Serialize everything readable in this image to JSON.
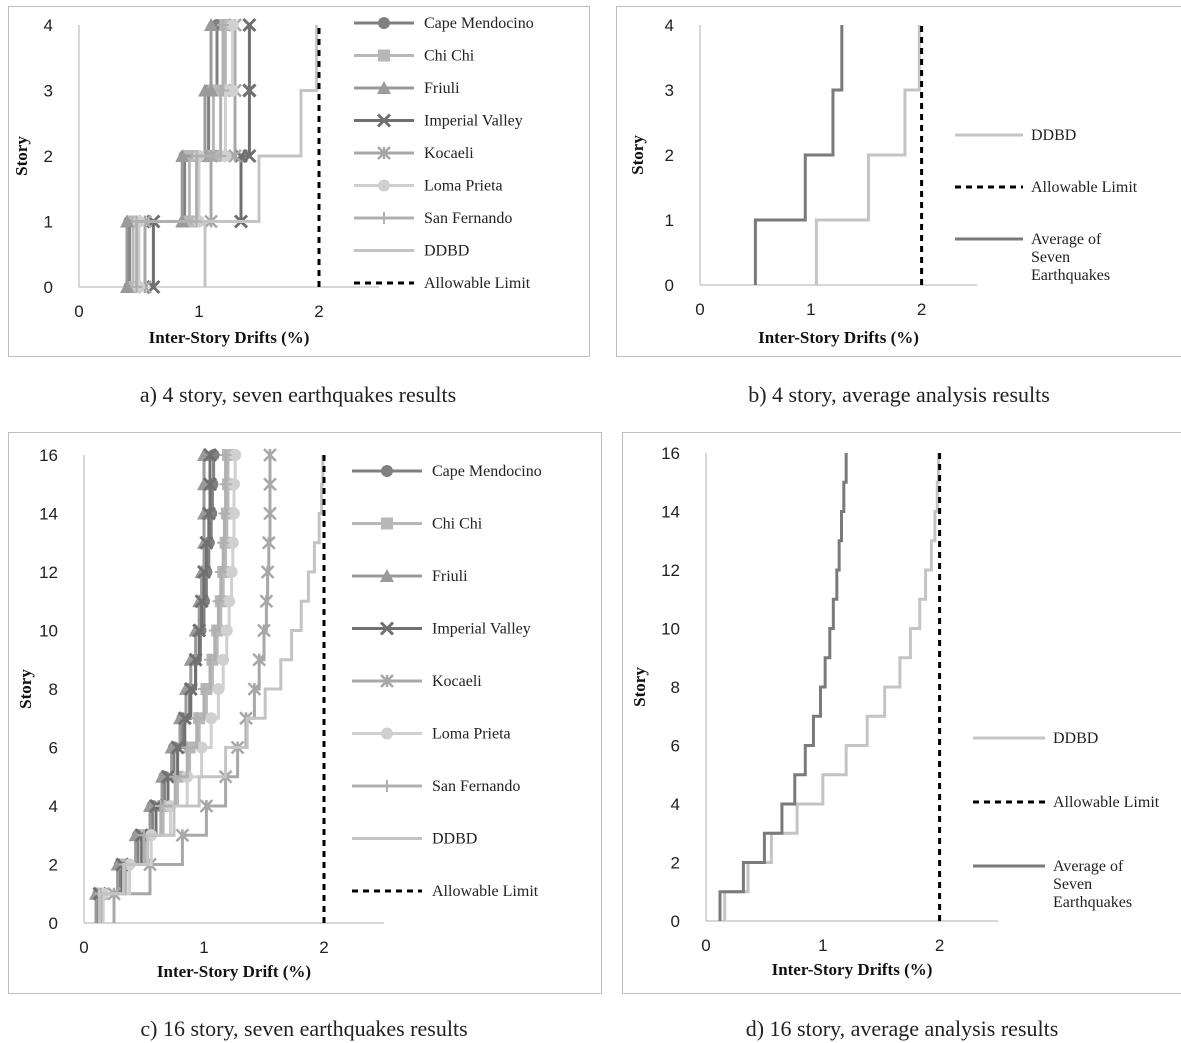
{
  "captions": {
    "a": "a) 4 story, seven earthquakes results",
    "b": "b) 4 story, average analysis results",
    "c": "c) 16 story, seven earthquakes results",
    "d": "d) 16 story, average analysis results"
  },
  "chart_data": [
    {
      "id": "a",
      "type": "line",
      "xlabel": "Inter-Story Drifts (%)",
      "ylabel": "Story",
      "xlim": [
        0,
        2.5
      ],
      "ylim": [
        0,
        4
      ],
      "xticks": [
        0,
        1,
        2
      ],
      "yticks": [
        0,
        1,
        2,
        3,
        4
      ],
      "grid": false,
      "legend_position": "right",
      "stories": [
        1,
        2,
        3,
        4
      ],
      "series": [
        {
          "name": "Cape Mendocino",
          "color": "#808080",
          "marker": "circle",
          "values": [
            0.42,
            0.88,
            1.08,
            1.15
          ]
        },
        {
          "name": "Chi Chi",
          "color": "#b8b8b8",
          "marker": "square",
          "values": [
            0.45,
            0.92,
            1.12,
            1.22
          ]
        },
        {
          "name": "Friuli",
          "color": "#9a9a9a",
          "marker": "triangle",
          "values": [
            0.4,
            0.86,
            1.05,
            1.1
          ]
        },
        {
          "name": "Imperial Valley",
          "color": "#707070",
          "marker": "x",
          "values": [
            0.62,
            1.35,
            1.42,
            1.42
          ]
        },
        {
          "name": "Kocaeli",
          "color": "#a8a8a8",
          "marker": "star",
          "values": [
            0.55,
            1.1,
            1.3,
            1.3
          ]
        },
        {
          "name": "Loma Prieta",
          "color": "#d0d0d0",
          "marker": "circle",
          "values": [
            0.5,
            1.0,
            1.22,
            1.28
          ]
        },
        {
          "name": "San Fernando",
          "color": "#b0b0b0",
          "marker": "plus",
          "values": [
            0.48,
            0.98,
            1.18,
            1.2
          ]
        },
        {
          "name": "DDBD",
          "color": "#c4c4c4",
          "marker": "none",
          "values": [
            1.05,
            1.5,
            1.85,
            1.98
          ]
        },
        {
          "name": "Allowable Limit",
          "color": "#000000",
          "marker": "none",
          "dashed": true,
          "values": [
            2,
            2,
            2,
            2
          ]
        }
      ]
    },
    {
      "id": "b",
      "type": "line",
      "xlabel": "Inter-Story Drifts (%)",
      "ylabel": "Story",
      "xlim": [
        0,
        2.5
      ],
      "ylim": [
        0,
        4
      ],
      "xticks": [
        0,
        1,
        2
      ],
      "yticks": [
        0,
        1,
        2,
        3,
        4
      ],
      "grid": false,
      "legend_position": "right",
      "stories": [
        1,
        2,
        3,
        4
      ],
      "series": [
        {
          "name": "DDBD",
          "color": "#c4c4c4",
          "values": [
            1.05,
            1.52,
            1.85,
            1.98
          ]
        },
        {
          "name": "Allowable Limit",
          "color": "#000000",
          "dashed": true,
          "values": [
            2,
            2,
            2,
            2
          ]
        },
        {
          "name": "Average of Seven Earthquakes",
          "color": "#7a7a7a",
          "values": [
            0.5,
            0.95,
            1.2,
            1.28
          ]
        }
      ]
    },
    {
      "id": "c",
      "type": "line",
      "xlabel": "Inter-Story Drift (%)",
      "ylabel": "Story",
      "xlim": [
        0,
        2.5
      ],
      "ylim": [
        0,
        16
      ],
      "xticks": [
        0,
        1,
        2
      ],
      "yticks": [
        0,
        2,
        4,
        6,
        8,
        10,
        12,
        14,
        16
      ],
      "grid": false,
      "legend_position": "right",
      "stories": [
        1,
        2,
        3,
        4,
        5,
        6,
        7,
        8,
        9,
        10,
        11,
        12,
        13,
        14,
        15,
        16
      ],
      "series": [
        {
          "name": "Cape Mendocino",
          "color": "#808080",
          "marker": "circle",
          "values": [
            0.12,
            0.3,
            0.45,
            0.57,
            0.67,
            0.75,
            0.82,
            0.88,
            0.93,
            0.97,
            1.0,
            1.02,
            1.04,
            1.06,
            1.07,
            1.08
          ]
        },
        {
          "name": "Chi Chi",
          "color": "#b8b8b8",
          "marker": "square",
          "values": [
            0.15,
            0.35,
            0.52,
            0.66,
            0.78,
            0.88,
            0.96,
            1.02,
            1.07,
            1.11,
            1.14,
            1.16,
            1.18,
            1.19,
            1.2,
            1.2
          ]
        },
        {
          "name": "Friuli",
          "color": "#9a9a9a",
          "marker": "triangle",
          "values": [
            0.1,
            0.28,
            0.43,
            0.55,
            0.65,
            0.73,
            0.8,
            0.85,
            0.89,
            0.93,
            0.96,
            0.98,
            1.0,
            1.0,
            1.0,
            1.0
          ]
        },
        {
          "name": "Imperial Valley",
          "color": "#707070",
          "marker": "x",
          "values": [
            0.13,
            0.32,
            0.48,
            0.6,
            0.7,
            0.78,
            0.84,
            0.89,
            0.93,
            0.96,
            0.98,
            1.0,
            1.02,
            1.04,
            1.05,
            1.05
          ]
        },
        {
          "name": "Kocaeli",
          "color": "#a8a8a8",
          "marker": "star",
          "values": [
            0.25,
            0.55,
            0.82,
            1.02,
            1.18,
            1.28,
            1.35,
            1.42,
            1.46,
            1.5,
            1.52,
            1.53,
            1.54,
            1.55,
            1.55,
            1.55
          ]
        },
        {
          "name": "Loma Prieta",
          "color": "#d0d0d0",
          "marker": "circle",
          "values": [
            0.16,
            0.38,
            0.56,
            0.72,
            0.86,
            0.98,
            1.06,
            1.12,
            1.16,
            1.19,
            1.21,
            1.23,
            1.24,
            1.25,
            1.25,
            1.26
          ]
        },
        {
          "name": "San Fernando",
          "color": "#b0b0b0",
          "marker": "plus",
          "values": [
            0.14,
            0.34,
            0.5,
            0.64,
            0.76,
            0.86,
            0.94,
            1.0,
            1.05,
            1.09,
            1.12,
            1.14,
            1.16,
            1.17,
            1.18,
            1.18
          ]
        },
        {
          "name": "DDBD",
          "color": "#c4c4c4",
          "marker": "none",
          "values": [
            0.13,
            0.33,
            0.53,
            0.75,
            0.96,
            1.18,
            1.36,
            1.51,
            1.64,
            1.73,
            1.81,
            1.87,
            1.92,
            1.96,
            1.98,
            1.99
          ]
        },
        {
          "name": "Allowable Limit",
          "color": "#000000",
          "marker": "none",
          "dashed": true,
          "values": [
            2,
            2,
            2,
            2,
            2,
            2,
            2,
            2,
            2,
            2,
            2,
            2,
            2,
            2,
            2,
            2
          ]
        }
      ]
    },
    {
      "id": "d",
      "type": "line",
      "xlabel": "Inter-Story Drifts (%)",
      "ylabel": "Story",
      "xlim": [
        0,
        2.5
      ],
      "ylim": [
        0,
        16
      ],
      "xticks": [
        0,
        1,
        2
      ],
      "yticks": [
        0,
        2,
        4,
        6,
        8,
        10,
        12,
        14,
        16
      ],
      "grid": false,
      "legend_position": "right",
      "stories": [
        1,
        2,
        3,
        4,
        5,
        6,
        7,
        8,
        9,
        10,
        11,
        12,
        13,
        14,
        15,
        16
      ],
      "series": [
        {
          "name": "DDBD",
          "color": "#c4c4c4",
          "values": [
            0.16,
            0.36,
            0.56,
            0.78,
            1.0,
            1.2,
            1.38,
            1.53,
            1.66,
            1.75,
            1.83,
            1.88,
            1.93,
            1.96,
            1.98,
            1.99
          ]
        },
        {
          "name": "Allowable Limit",
          "color": "#000000",
          "dashed": true,
          "values": [
            2,
            2,
            2,
            2,
            2,
            2,
            2,
            2,
            2,
            2,
            2,
            2,
            2,
            2,
            2,
            2
          ]
        },
        {
          "name": "Average of Seven Earthquakes",
          "color": "#7a7a7a",
          "values": [
            0.12,
            0.32,
            0.5,
            0.65,
            0.76,
            0.85,
            0.92,
            0.98,
            1.02,
            1.06,
            1.09,
            1.12,
            1.14,
            1.16,
            1.18,
            1.2
          ]
        }
      ]
    }
  ]
}
